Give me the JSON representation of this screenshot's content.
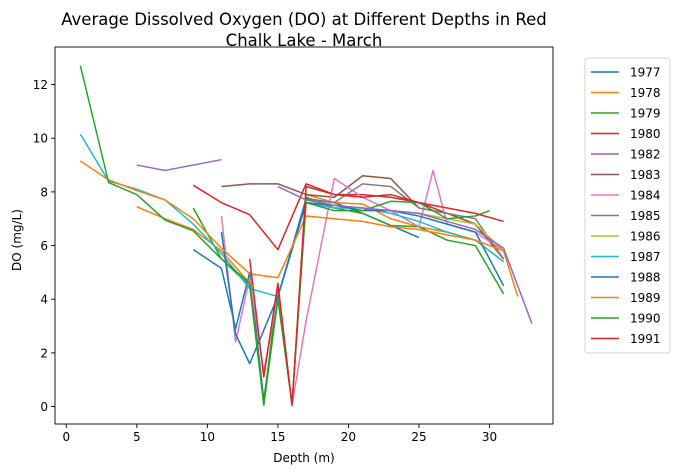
{
  "chart_data": {
    "type": "line",
    "title_lines": [
      "Average Dissolved Oxygen (DO) at Different Depths in Red",
      "Chalk Lake - March"
    ],
    "xlabel": "Depth (m)",
    "ylabel": "DO (mg/L)",
    "xlim": [
      -0.8,
      34.5
    ],
    "ylim": [
      -0.65,
      13.4
    ],
    "xticks": [
      0,
      5,
      10,
      15,
      20,
      25,
      30
    ],
    "yticks": [
      0,
      2,
      4,
      6,
      8,
      10,
      12
    ],
    "grid": false,
    "legend_placement": "outside-right",
    "series": [
      {
        "name": "1977",
        "color": "#1f77b4",
        "points": [
          [
            9,
            5.85
          ],
          [
            11,
            5.15
          ],
          [
            12,
            2.9
          ],
          [
            13,
            5.0
          ],
          [
            14,
            0.25
          ],
          [
            15,
            4.1
          ],
          [
            17,
            7.75
          ],
          [
            19,
            7.6
          ],
          [
            21,
            7.2
          ],
          [
            23,
            6.75
          ],
          [
            25,
            6.3
          ]
        ]
      },
      {
        "name": "1978",
        "color": "#ff7f0e",
        "points": [
          [
            5,
            7.45
          ],
          [
            7,
            7.0
          ],
          [
            9,
            6.6
          ],
          [
            11,
            5.8
          ],
          [
            13,
            4.6
          ],
          [
            14,
            0.1
          ],
          [
            15,
            4.3
          ],
          [
            16,
            0.05
          ],
          [
            17,
            7.9
          ],
          [
            19,
            7.6
          ],
          [
            21,
            7.55
          ],
          [
            23,
            7.0
          ],
          [
            25,
            6.7
          ],
          [
            27,
            6.5
          ],
          [
            29,
            6.2
          ],
          [
            31,
            5.4
          ]
        ]
      },
      {
        "name": "1979",
        "color": "#2ca02c",
        "points": [
          [
            9,
            7.4
          ],
          [
            11,
            5.5
          ],
          [
            13,
            4.5
          ],
          [
            14,
            0.1
          ],
          [
            15,
            4.5
          ],
          [
            16,
            0.05
          ],
          [
            17,
            7.8
          ],
          [
            19,
            7.4
          ],
          [
            21,
            7.2
          ],
          [
            23,
            6.75
          ],
          [
            25,
            6.7
          ],
          [
            27,
            6.2
          ],
          [
            29,
            6.0
          ],
          [
            31,
            4.2
          ]
        ]
      },
      {
        "name": "1980",
        "color": "#d62728",
        "points": [
          [
            9,
            8.25
          ],
          [
            11,
            7.6
          ],
          [
            13,
            7.15
          ],
          [
            15,
            5.85
          ],
          [
            17,
            8.3
          ],
          [
            19,
            7.9
          ],
          [
            21,
            7.9
          ],
          [
            23,
            7.8
          ],
          [
            25,
            7.6
          ],
          [
            27,
            7.2
          ],
          [
            29,
            6.8
          ],
          [
            31,
            5.5
          ]
        ]
      },
      {
        "name": "1982",
        "color": "#9467bd",
        "points": [
          [
            5,
            9.0
          ],
          [
            7,
            8.8
          ],
          [
            9,
            9.0
          ],
          [
            11,
            9.2
          ]
        ]
      },
      {
        "name": "1983",
        "color": "#8c564b",
        "points": [
          [
            11,
            8.2
          ],
          [
            13,
            8.3
          ],
          [
            15,
            8.3
          ],
          [
            17,
            7.9
          ],
          [
            19,
            7.8
          ],
          [
            21,
            8.6
          ],
          [
            23,
            8.5
          ],
          [
            25,
            7.4
          ],
          [
            27,
            7.2
          ],
          [
            29,
            6.8
          ],
          [
            31,
            5.5
          ]
        ]
      },
      {
        "name": "1984",
        "color": "#e377c2",
        "points": [
          [
            11,
            7.1
          ],
          [
            12,
            2.4
          ],
          [
            13,
            4.8
          ],
          [
            14,
            1.3
          ],
          [
            15,
            4.2
          ],
          [
            16,
            0.05
          ],
          [
            17,
            3.2
          ],
          [
            19,
            8.5
          ],
          [
            21,
            7.8
          ],
          [
            23,
            7.3
          ],
          [
            25,
            6.7
          ],
          [
            26,
            8.8
          ],
          [
            27,
            6.8
          ],
          [
            29,
            6.5
          ],
          [
            31,
            5.8
          ]
        ]
      },
      {
        "name": "1985",
        "color": "#7f7f7f",
        "points": [
          [
            17,
            7.7
          ],
          [
            19,
            7.6
          ],
          [
            21,
            8.3
          ],
          [
            23,
            8.2
          ],
          [
            25,
            7.4
          ],
          [
            27,
            7.2
          ],
          [
            29,
            7.0
          ],
          [
            31,
            5.5
          ]
        ]
      },
      {
        "name": "1986",
        "color": "#bcbd22",
        "points": [
          [
            17,
            7.6
          ],
          [
            19,
            7.5
          ],
          [
            21,
            7.4
          ],
          [
            23,
            7.3
          ],
          [
            25,
            7.2
          ],
          [
            27,
            7.0
          ],
          [
            29,
            6.8
          ],
          [
            31,
            5.8
          ]
        ]
      },
      {
        "name": "1987",
        "color": "#17becf",
        "points": [
          [
            1,
            10.15
          ],
          [
            3,
            8.4
          ],
          [
            5,
            8.1
          ],
          [
            7,
            7.7
          ],
          [
            9,
            6.8
          ],
          [
            11,
            5.7
          ],
          [
            13,
            4.4
          ],
          [
            15,
            4.1
          ],
          [
            17,
            7.6
          ],
          [
            19,
            7.4
          ],
          [
            21,
            7.4
          ],
          [
            23,
            7.2
          ],
          [
            25,
            6.9
          ],
          [
            27,
            6.5
          ],
          [
            29,
            6.2
          ],
          [
            31,
            5.4
          ]
        ]
      },
      {
        "name": "1988",
        "color": "#1f77b4",
        "points": [
          [
            11,
            6.5
          ],
          [
            12,
            2.7
          ],
          [
            13,
            1.6
          ],
          [
            15,
            4.1
          ],
          [
            17,
            7.6
          ],
          [
            19,
            7.5
          ],
          [
            21,
            7.3
          ],
          [
            23,
            7.3
          ],
          [
            25,
            7.1
          ],
          [
            27,
            6.8
          ],
          [
            29,
            6.5
          ],
          [
            31,
            4.5
          ]
        ]
      },
      {
        "name": "1989",
        "color": "#ff7f0e",
        "points": [
          [
            1,
            9.15
          ],
          [
            3,
            8.45
          ],
          [
            5,
            8.05
          ],
          [
            7,
            7.7
          ],
          [
            9,
            7.0
          ],
          [
            11,
            5.9
          ],
          [
            13,
            4.95
          ],
          [
            15,
            4.8
          ],
          [
            17,
            7.1
          ],
          [
            19,
            7.0
          ],
          [
            21,
            6.9
          ],
          [
            23,
            6.7
          ],
          [
            25,
            6.6
          ],
          [
            27,
            6.4
          ],
          [
            29,
            6.2
          ],
          [
            31,
            5.8
          ],
          [
            32,
            4.1
          ]
        ]
      },
      {
        "name": "1990",
        "color": "#2ca02c",
        "points": [
          [
            1,
            12.7
          ],
          [
            3,
            8.35
          ],
          [
            5,
            7.9
          ],
          [
            7,
            6.95
          ],
          [
            9,
            6.55
          ],
          [
            11,
            5.5
          ],
          [
            13,
            4.6
          ],
          [
            14,
            0.05
          ],
          [
            15,
            4.0
          ],
          [
            16,
            0.1
          ],
          [
            17,
            7.6
          ],
          [
            19,
            7.3
          ],
          [
            21,
            7.3
          ],
          [
            23,
            7.65
          ],
          [
            25,
            7.6
          ],
          [
            27,
            7.0
          ],
          [
            29,
            7.1
          ],
          [
            30,
            7.3
          ]
        ]
      },
      {
        "name": "1991",
        "color": "#d62728",
        "points": [
          [
            13,
            5.5
          ],
          [
            14,
            1.1
          ],
          [
            15,
            4.6
          ],
          [
            16,
            0.05
          ],
          [
            17,
            8.2
          ],
          [
            19,
            7.9
          ],
          [
            21,
            7.8
          ],
          [
            23,
            7.9
          ],
          [
            25,
            7.6
          ],
          [
            27,
            7.4
          ],
          [
            29,
            7.2
          ],
          [
            31,
            6.9
          ]
        ]
      }
    ],
    "extra_lines": [
      {
        "color": "#9467bd",
        "points": [
          [
            15,
            8.2
          ],
          [
            17,
            7.7
          ],
          [
            19,
            7.5
          ],
          [
            21,
            7.4
          ],
          [
            23,
            7.3
          ],
          [
            25,
            7.2
          ],
          [
            27,
            6.9
          ],
          [
            29,
            6.6
          ],
          [
            31,
            5.9
          ],
          [
            33,
            3.1
          ]
        ]
      }
    ]
  }
}
